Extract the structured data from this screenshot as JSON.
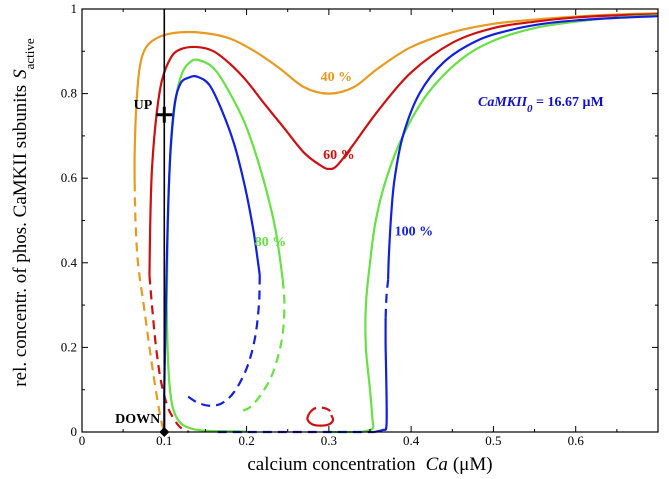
{
  "chart_data": {
    "type": "line",
    "xlabel": "calcium concentration",
    "xlabel_symbol": "Ca",
    "xlabel_unit": "(μM)",
    "ylabel": "rel. concentr. of phos. CaMKII subunits",
    "ylabel_symbol": "S",
    "ylabel_subscript": "active",
    "xlim": [
      0,
      0.7
    ],
    "ylim": [
      0,
      1
    ],
    "x_ticks": [
      0,
      0.1,
      0.2,
      0.3,
      0.4,
      0.5,
      0.6
    ],
    "x_tick_labels": [
      "0",
      "0.1",
      "0.2",
      "0.3",
      "0.4",
      "0.5",
      "0.6"
    ],
    "y_ticks": [
      0,
      0.2,
      0.4,
      0.6,
      0.8,
      1
    ],
    "y_tick_labels": [
      "0",
      "0.2",
      "0.4",
      "0.6",
      "0.8",
      "1"
    ],
    "grid": false,
    "legend": "none",
    "annotation": {
      "prefix": "CaMKII",
      "subscript": "0",
      "suffix": " = 16.67 μM",
      "color": "#1010cc"
    },
    "markers": [
      {
        "label": "UP",
        "x": 0.1,
        "y": 0.75,
        "shape": "plus"
      },
      {
        "label": "DOWN",
        "x": 0.1,
        "y": 0.0,
        "shape": "diamond"
      }
    ],
    "vertical_line_x": 0.1,
    "series": [
      {
        "name": "40 %",
        "color": "#e89a20",
        "label_pos": [
          0.29,
          0.83
        ],
        "segments": [
          {
            "style": "solid",
            "points": [
              [
                0.064,
                0.59
              ],
              [
                0.064,
                0.66
              ],
              [
                0.066,
                0.77
              ],
              [
                0.07,
                0.86
              ],
              [
                0.078,
                0.91
              ],
              [
                0.095,
                0.935
              ],
              [
                0.12,
                0.945
              ],
              [
                0.15,
                0.943
              ],
              [
                0.18,
                0.93
              ],
              [
                0.21,
                0.9
              ],
              [
                0.24,
                0.86
              ],
              [
                0.27,
                0.815
              ],
              [
                0.3,
                0.8
              ],
              [
                0.33,
                0.815
              ],
              [
                0.36,
                0.86
              ],
              [
                0.4,
                0.91
              ],
              [
                0.45,
                0.945
              ],
              [
                0.5,
                0.965
              ],
              [
                0.55,
                0.975
              ],
              [
                0.6,
                0.982
              ],
              [
                0.65,
                0.987
              ],
              [
                0.7,
                0.99
              ]
            ]
          },
          {
            "style": "dashed",
            "points": [
              [
                0.064,
                0.59
              ],
              [
                0.065,
                0.5
              ],
              [
                0.068,
                0.4
              ],
              [
                0.075,
                0.3
              ],
              [
                0.082,
                0.2
              ],
              [
                0.088,
                0.12
              ],
              [
                0.093,
                0.06
              ],
              [
                0.097,
                0.02
              ],
              [
                0.1,
                0.0
              ]
            ]
          }
        ]
      },
      {
        "name": "60 %",
        "color": "#cc1010",
        "label_pos": [
          0.293,
          0.645
        ],
        "segments": [
          {
            "style": "solid",
            "points": [
              [
                0.082,
                0.37
              ],
              [
                0.083,
                0.5
              ],
              [
                0.085,
                0.62
              ],
              [
                0.09,
                0.74
              ],
              [
                0.097,
                0.83
              ],
              [
                0.108,
                0.885
              ],
              [
                0.12,
                0.905
              ],
              [
                0.14,
                0.91
              ],
              [
                0.16,
                0.9
              ],
              [
                0.18,
                0.87
              ],
              [
                0.2,
                0.83
              ],
              [
                0.22,
                0.78
              ],
              [
                0.245,
                0.72
              ],
              [
                0.27,
                0.66
              ],
              [
                0.29,
                0.63
              ],
              [
                0.3,
                0.622
              ],
              [
                0.31,
                0.63
              ],
              [
                0.33,
                0.68
              ],
              [
                0.36,
                0.76
              ],
              [
                0.4,
                0.85
              ],
              [
                0.45,
                0.92
              ],
              [
                0.5,
                0.955
              ],
              [
                0.55,
                0.97
              ],
              [
                0.6,
                0.98
              ],
              [
                0.65,
                0.985
              ],
              [
                0.7,
                0.988
              ]
            ]
          },
          {
            "style": "dashed",
            "points": [
              [
                0.082,
                0.37
              ],
              [
                0.085,
                0.3
              ],
              [
                0.09,
                0.2
              ],
              [
                0.096,
                0.12
              ],
              [
                0.104,
                0.06
              ],
              [
                0.112,
                0.03
              ],
              [
                0.12,
                0.01
              ],
              [
                0.13,
                0.0
              ]
            ]
          },
          {
            "style": "dashed",
            "points": [
              [
                0.276,
                0.044
              ],
              [
                0.282,
                0.055
              ],
              [
                0.29,
                0.058
              ],
              [
                0.3,
                0.052
              ],
              [
                0.303,
                0.04
              ]
            ]
          },
          {
            "style": "solid",
            "points": [
              [
                0.303,
                0.04
              ],
              [
                0.305,
                0.028
              ],
              [
                0.3,
                0.018
              ],
              [
                0.29,
                0.015
              ],
              [
                0.28,
                0.018
              ],
              [
                0.274,
                0.03
              ],
              [
                0.276,
                0.044
              ]
            ]
          }
        ]
      },
      {
        "name": "80 %",
        "color": "#66e044",
        "label_pos": [
          0.21,
          0.44
        ],
        "segments": [
          {
            "style": "solid",
            "points": [
              [
                0.103,
                0.3
              ],
              [
                0.104,
                0.45
              ],
              [
                0.106,
                0.6
              ],
              [
                0.11,
                0.72
              ],
              [
                0.115,
                0.8
              ],
              [
                0.122,
                0.85
              ],
              [
                0.13,
                0.872
              ],
              [
                0.14,
                0.88
              ],
              [
                0.16,
                0.86
              ],
              [
                0.18,
                0.8
              ],
              [
                0.2,
                0.72
              ],
              [
                0.22,
                0.6
              ],
              [
                0.235,
                0.48
              ],
              [
                0.244,
                0.36
              ]
            ]
          },
          {
            "style": "dashed",
            "points": [
              [
                0.244,
                0.36
              ],
              [
                0.246,
                0.3
              ],
              [
                0.243,
                0.22
              ],
              [
                0.232,
                0.14
              ],
              [
                0.218,
                0.09
              ],
              [
                0.205,
                0.06
              ],
              [
                0.195,
                0.05
              ]
            ]
          },
          {
            "style": "solid",
            "points": [
              [
                0.103,
                0.3
              ],
              [
                0.104,
                0.2
              ],
              [
                0.106,
                0.12
              ],
              [
                0.11,
                0.06
              ],
              [
                0.118,
                0.025
              ],
              [
                0.13,
                0.01
              ],
              [
                0.15,
                0.003
              ],
              [
                0.2,
                0.001
              ]
            ]
          },
          {
            "style": "dashed",
            "points": [
              [
                0.3,
                0.0
              ],
              [
                0.34,
                0.0
              ]
            ]
          },
          {
            "style": "solid",
            "points": [
              [
                0.34,
                0.0
              ],
              [
                0.353,
                0.008
              ],
              [
                0.353,
                0.03
              ],
              [
                0.35,
                0.1
              ],
              [
                0.345,
                0.2
              ],
              [
                0.345,
                0.3
              ],
              [
                0.35,
                0.4
              ],
              [
                0.357,
                0.5
              ],
              [
                0.37,
                0.6
              ],
              [
                0.39,
                0.7
              ],
              [
                0.42,
                0.8
              ],
              [
                0.46,
                0.88
              ],
              [
                0.5,
                0.925
              ],
              [
                0.55,
                0.955
              ],
              [
                0.6,
                0.97
              ],
              [
                0.65,
                0.98
              ],
              [
                0.7,
                0.985
              ]
            ]
          }
        ]
      },
      {
        "name": "100 %",
        "color": "#1020dd",
        "label_pos": [
          0.38,
          0.465
        ],
        "segments": [
          {
            "style": "solid",
            "points": [
              [
                0.1,
                0.0
              ],
              [
                0.1,
                0.05
              ],
              [
                0.1,
                0.1
              ],
              [
                0.101,
                0.2
              ],
              [
                0.102,
                0.3
              ],
              [
                0.103,
                0.4
              ],
              [
                0.105,
                0.55
              ],
              [
                0.108,
                0.68
              ],
              [
                0.113,
                0.78
              ],
              [
                0.12,
                0.825
              ],
              [
                0.13,
                0.838
              ],
              [
                0.14,
                0.84
              ],
              [
                0.155,
                0.82
              ],
              [
                0.17,
                0.76
              ],
              [
                0.185,
                0.68
              ],
              [
                0.198,
                0.58
              ],
              [
                0.208,
                0.48
              ],
              [
                0.214,
                0.4
              ],
              [
                0.216,
                0.37
              ]
            ]
          },
          {
            "style": "dashed",
            "points": [
              [
                0.216,
                0.37
              ],
              [
                0.215,
                0.3
              ],
              [
                0.21,
                0.22
              ],
              [
                0.2,
                0.15
              ],
              [
                0.185,
                0.095
              ],
              [
                0.17,
                0.068
              ],
              [
                0.155,
                0.062
              ],
              [
                0.14,
                0.07
              ],
              [
                0.128,
                0.085
              ]
            ]
          },
          {
            "style": "dashed",
            "points": [
              [
                0.165,
                0.0
              ],
              [
                0.2,
                0.0
              ],
              [
                0.24,
                0.0
              ],
              [
                0.28,
                0.0
              ],
              [
                0.32,
                0.0
              ],
              [
                0.355,
                0.0
              ]
            ]
          },
          {
            "style": "solid",
            "points": [
              [
                0.355,
                0.0
              ],
              [
                0.366,
                0.005
              ],
              [
                0.37,
                0.015
              ],
              [
                0.37,
                0.1
              ],
              [
                0.369,
                0.2
              ],
              [
                0.369,
                0.27
              ]
            ]
          },
          {
            "style": "dashed",
            "points": [
              [
                0.369,
                0.27
              ],
              [
                0.37,
                0.32
              ],
              [
                0.372,
                0.36
              ]
            ]
          },
          {
            "style": "solid",
            "points": [
              [
                0.372,
                0.36
              ],
              [
                0.373,
                0.42
              ],
              [
                0.376,
                0.52
              ],
              [
                0.38,
                0.6
              ],
              [
                0.39,
                0.7
              ],
              [
                0.41,
                0.8
              ],
              [
                0.44,
                0.875
              ],
              [
                0.48,
                0.925
              ],
              [
                0.52,
                0.95
              ],
              [
                0.56,
                0.965
              ],
              [
                0.6,
                0.973
              ],
              [
                0.65,
                0.979
              ],
              [
                0.7,
                0.983
              ]
            ]
          }
        ]
      }
    ]
  }
}
